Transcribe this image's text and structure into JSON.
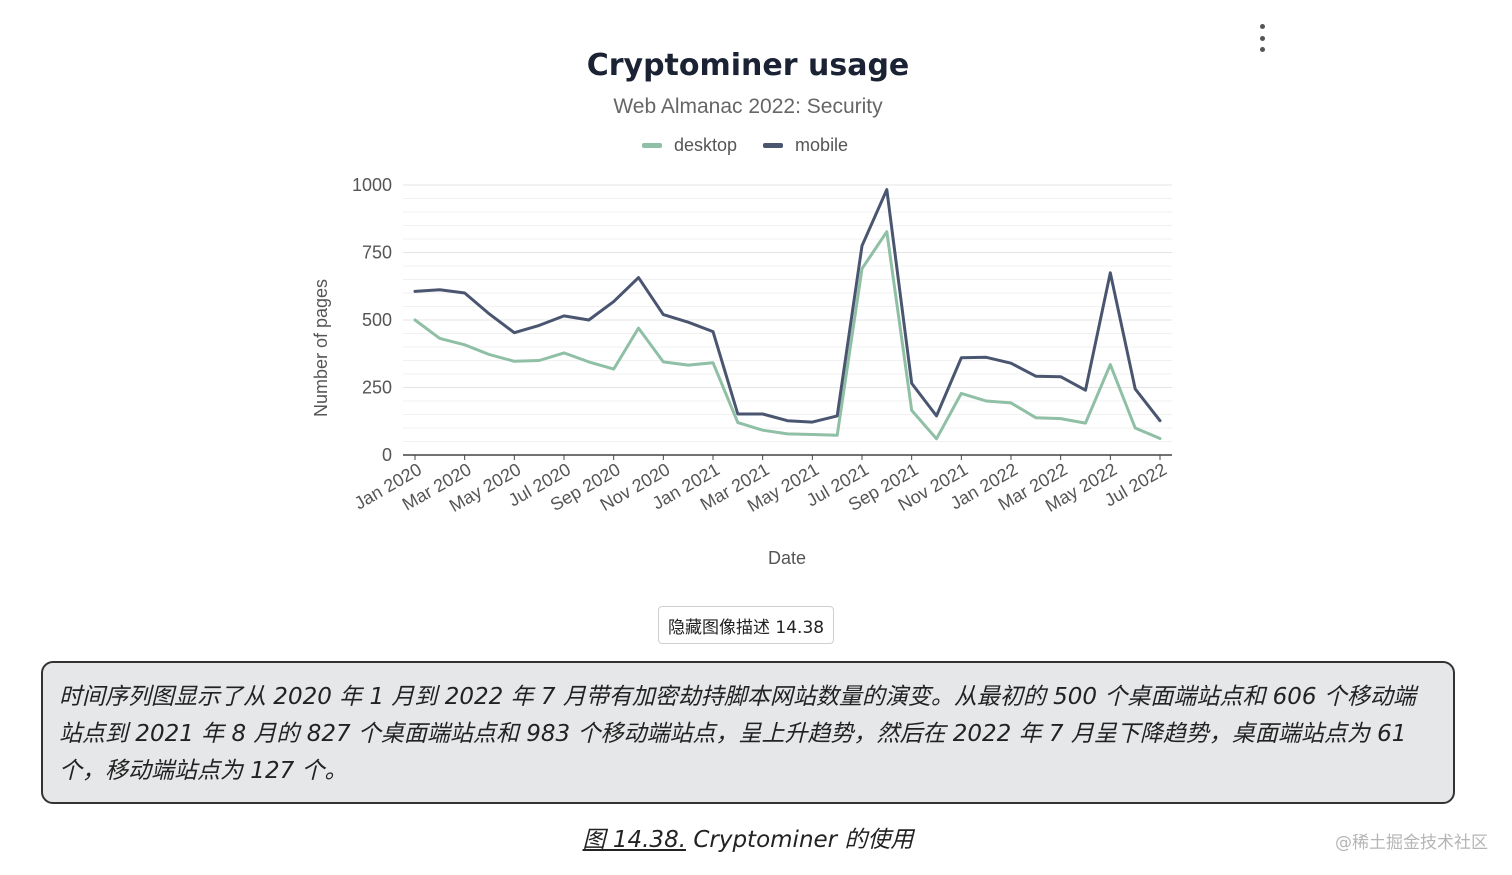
{
  "menu": {
    "icon": "kebab-menu-icon"
  },
  "chart_data": {
    "type": "line",
    "title": "Cryptominer usage",
    "subtitle": "Web Almanac 2022: Security",
    "xlabel": "Date",
    "ylabel": "Number of pages",
    "ylim": [
      0,
      1000
    ],
    "yticks": [
      0,
      250,
      500,
      750,
      1000
    ],
    "grid": true,
    "legend_position": "top",
    "x": [
      "Jan 2020",
      "Feb 2020",
      "Mar 2020",
      "Apr 2020",
      "May 2020",
      "Jun 2020",
      "Jul 2020",
      "Aug 2020",
      "Sep 2020",
      "Oct 2020",
      "Nov 2020",
      "Dec 2020",
      "Jan 2021",
      "Feb 2021",
      "Mar 2021",
      "Apr 2021",
      "May 2021",
      "Jun 2021",
      "Jul 2021",
      "Aug 2021",
      "Sep 2021",
      "Oct 2021",
      "Nov 2021",
      "Dec 2021",
      "Jan 2022",
      "Feb 2022",
      "Mar 2022",
      "Apr 2022",
      "May 2022",
      "Jun 2022",
      "Jul 2022"
    ],
    "xtick_labels": [
      "Jan 2020",
      "Mar 2020",
      "May 2020",
      "Jul 2020",
      "Sep 2020",
      "Nov 2020",
      "Jan 2021",
      "Mar 2021",
      "May 2021",
      "Jul 2021",
      "Sep 2021",
      "Nov 2021",
      "Jan 2022",
      "Mar 2022",
      "May 2022",
      "Jul 2022"
    ],
    "series": [
      {
        "name": "desktop",
        "color": "#8fbfa5",
        "values": [
          500,
          432,
          408,
          372,
          347,
          350,
          378,
          345,
          318,
          470,
          345,
          333,
          342,
          120,
          92,
          78,
          76,
          73,
          690,
          827,
          165,
          60,
          228,
          200,
          193,
          138,
          135,
          118,
          335,
          100,
          61
        ]
      },
      {
        "name": "mobile",
        "color": "#4a5670",
        "values": [
          606,
          612,
          600,
          522,
          453,
          480,
          515,
          500,
          568,
          657,
          520,
          492,
          457,
          152,
          152,
          127,
          122,
          145,
          775,
          983,
          265,
          145,
          360,
          362,
          340,
          292,
          290,
          240,
          675,
          245,
          127
        ]
      }
    ]
  },
  "description_button": {
    "label": "隐藏图像描述 14.38"
  },
  "description": "时间序列图显示了从 2020 年 1 月到 2022 年 7 月带有加密劫持脚本网站数量的演变。从最初的 500 个桌面端站点和 606 个移动端站点到 2021 年 8 月的 827 个桌面端站点和 983 个移动端站点，呈上升趋势，然后在 2022 年 7 月呈下降趋势，桌面端站点为 61 个，移动端站点为 127 个。",
  "caption": {
    "link": "图 14.38.",
    "text": " Cryptominer 的使用"
  },
  "watermark": "@稀土掘金技术社区"
}
